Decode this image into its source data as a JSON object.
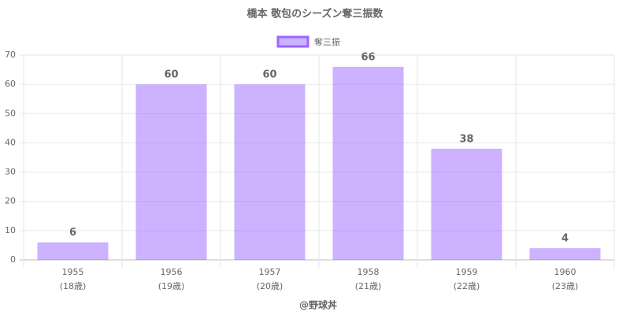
{
  "chart_data": {
    "type": "bar",
    "title": "橋本 敬包のシーズン奪三振数",
    "categories": [
      "1955",
      "1956",
      "1957",
      "1958",
      "1959",
      "1960"
    ],
    "sublabels": [
      "(18歳)",
      "(19歳)",
      "(20歳)",
      "(21歳)",
      "(22歳)",
      "(23歳)"
    ],
    "series": [
      {
        "name": "奪三振",
        "color": "#9966ff",
        "values": [
          6,
          60,
          60,
          66,
          38,
          4
        ]
      }
    ],
    "x_label": "@野球丼",
    "ylim": [
      0,
      70
    ],
    "yticks": [
      0,
      10,
      20,
      30,
      40,
      50,
      60,
      70
    ],
    "grid": true,
    "legend": "top"
  }
}
